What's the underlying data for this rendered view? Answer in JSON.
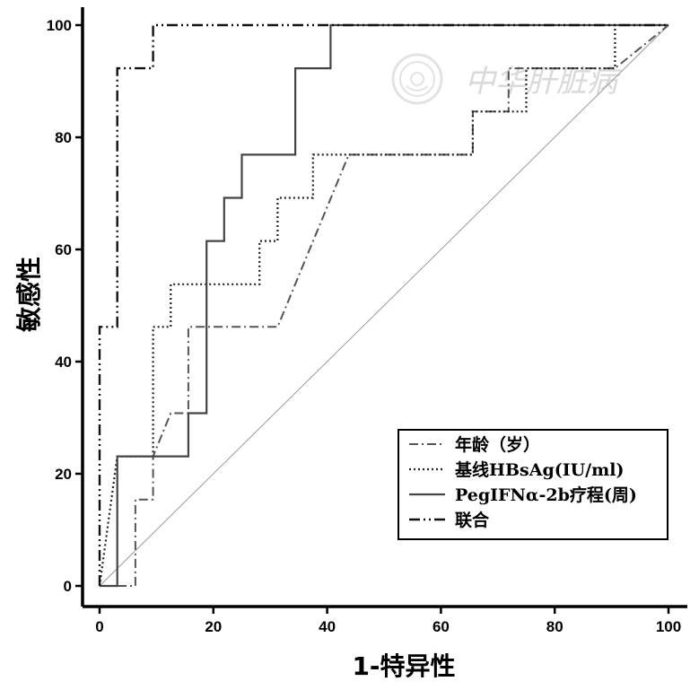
{
  "chart_data": {
    "type": "line",
    "title": "",
    "xlabel": "1-特异性",
    "ylabel": "敏感性",
    "xlim": [
      -3,
      103
    ],
    "ylim": [
      -3,
      103
    ],
    "xticks": [
      0,
      20,
      40,
      60,
      80,
      100
    ],
    "yticks": [
      0,
      20,
      40,
      60,
      80,
      100
    ],
    "grid": false,
    "legend_position": "bottom-right",
    "reference_line": {
      "x": [
        0,
        100
      ],
      "y": [
        0,
        100
      ]
    },
    "series": [
      {
        "name": "年龄（岁）",
        "style": "dash-dot",
        "color": "#555555",
        "x": [
          0,
          6.3,
          6.3,
          9.4,
          9.4,
          12.5,
          15.6,
          15.6,
          31.3,
          43.8,
          65.6,
          65.6,
          71.9,
          71.9,
          90.6,
          100
        ],
        "y": [
          0,
          0,
          15.4,
          15.4,
          23.1,
          30.8,
          30.8,
          46.2,
          46.2,
          76.9,
          76.9,
          84.6,
          84.6,
          92.3,
          92.3,
          100
        ]
      },
      {
        "name": "基线HBsAg(IU/ml)",
        "style": "dotted",
        "color": "#222222",
        "x": [
          0,
          3.1,
          9.4,
          9.4,
          12.5,
          12.5,
          28.1,
          28.1,
          31.3,
          31.3,
          37.5,
          37.5,
          43.8,
          65.6,
          65.6,
          75,
          75,
          90.6,
          90.6,
          100
        ],
        "y": [
          0,
          23.1,
          23.1,
          46.2,
          46.2,
          53.8,
          53.8,
          61.5,
          61.5,
          69.2,
          69.2,
          76.9,
          76.9,
          76.9,
          84.6,
          84.6,
          92.3,
          92.3,
          100,
          100
        ]
      },
      {
        "name": "PegIFNα-2b疗程(周)",
        "style": "solid",
        "color": "#444444",
        "x": [
          0,
          3.1,
          3.1,
          15.6,
          15.6,
          18.8,
          18.8,
          21.9,
          21.9,
          25,
          25,
          34.4,
          34.4,
          40.6,
          40.6,
          100
        ],
        "y": [
          0,
          0,
          23.1,
          23.1,
          30.8,
          30.8,
          61.5,
          61.5,
          69.2,
          69.2,
          76.9,
          76.9,
          92.3,
          92.3,
          100,
          100
        ]
      },
      {
        "name": "联合",
        "style": "dash-dot-dot",
        "color": "#111111",
        "x": [
          0,
          0,
          3.1,
          3.1,
          9.4,
          9.4,
          100
        ],
        "y": [
          0,
          46.2,
          46.2,
          92.3,
          92.3,
          100,
          100
        ]
      }
    ]
  },
  "watermark": {
    "text": "中华肝脏病",
    "color": "#d9d9d9",
    "emblem": "seal-emblem-icon"
  }
}
